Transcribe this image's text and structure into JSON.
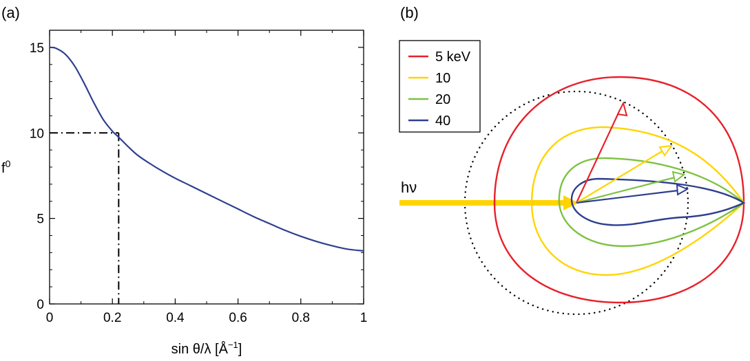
{
  "panel_a": {
    "label": "(a)",
    "xlabel": "sin θ/λ [Å",
    "xlabel_exp": "−1",
    "xlabel_end": "]",
    "ylabel": "f",
    "ylabel_sup": "0"
  },
  "panel_b": {
    "label": "(b)",
    "beam_label": "hν"
  },
  "chart_data": [
    {
      "panel": "a",
      "type": "line",
      "xlim": [
        0,
        1
      ],
      "ylim": [
        0,
        16
      ],
      "xticks": [
        0,
        0.2,
        0.4,
        0.6,
        0.8,
        1
      ],
      "xtick_labels": [
        "0",
        "0.2",
        "0.4",
        "0.6",
        "0.8",
        "1"
      ],
      "yticks": [
        0,
        5,
        10,
        15
      ],
      "ytick_labels": [
        "0",
        "5",
        "10",
        "15"
      ],
      "grid": false,
      "series": [
        {
          "color": "#2e3e8f",
          "x": [
            0,
            0.02,
            0.05,
            0.08,
            0.11,
            0.14,
            0.17,
            0.2,
            0.22,
            0.25,
            0.28,
            0.32,
            0.36,
            0.4,
            0.45,
            0.5,
            0.55,
            0.6,
            0.65,
            0.7,
            0.75,
            0.8,
            0.85,
            0.9,
            0.95,
            1.0
          ],
          "y": [
            15.0,
            14.95,
            14.6,
            13.9,
            12.9,
            11.8,
            10.8,
            10.1,
            9.75,
            9.2,
            8.7,
            8.2,
            7.75,
            7.35,
            6.9,
            6.45,
            6.0,
            5.55,
            5.1,
            4.7,
            4.3,
            3.95,
            3.65,
            3.4,
            3.2,
            3.1
          ]
        }
      ],
      "annotations": [
        {
          "type": "dash-dot-guide",
          "x": 0.22,
          "y": 10,
          "color": "#000000"
        }
      ]
    },
    {
      "panel": "b",
      "type": "polar",
      "legend_position": "top-left",
      "reference_circle": {
        "style": "dotted",
        "color": "#000000"
      },
      "incident_beam": {
        "label": "hν",
        "color": "#ffd400"
      },
      "series": [
        {
          "name": "5 keV",
          "color": "#e8202a"
        },
        {
          "name": "10",
          "color": "#ffd400"
        },
        {
          "name": "20",
          "color": "#7dc242"
        },
        {
          "name": "40",
          "color": "#2e3e8f"
        }
      ]
    }
  ]
}
